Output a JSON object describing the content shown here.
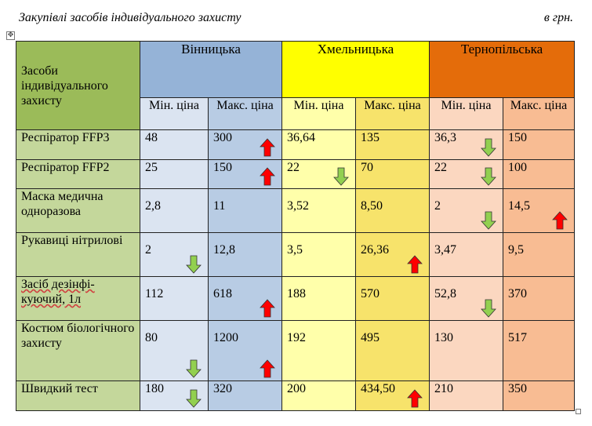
{
  "header": {
    "title": "Закупівлі  засобів індивідуального захисту",
    "unit": "в грн."
  },
  "table": {
    "corner_label": "Засоби індивідуального захисту",
    "cities": [
      "Вінницька",
      "Хмельницька",
      "Тернопільська"
    ],
    "min_label": "Мін. ціна",
    "max_label": "Макс. ціна",
    "rows": [
      {
        "item": "Респіратор FFP3",
        "values": [
          "48",
          "300",
          "36,64",
          "135",
          "36,3",
          "150"
        ]
      },
      {
        "item": "Респіратор FFP2",
        "values": [
          "25",
          "150",
          "22",
          "70",
          "22",
          "100"
        ]
      },
      {
        "item": "Маска медична одноразова",
        "values": [
          "2,8",
          "11",
          "3,52",
          "8,50",
          "2",
          "14,5"
        ]
      },
      {
        "item": "Рукавиці нітрилові",
        "values": [
          "2",
          "12,8",
          "3,5",
          "26,36",
          "3,47",
          "9,5"
        ]
      },
      {
        "item": "Засіб дезінфі-куючий, 1л",
        "values": [
          "112",
          "618",
          "188",
          "570",
          "52,8",
          "370"
        ]
      },
      {
        "item": "Костюм біологічного захисту",
        "values": [
          "80",
          "1200",
          "192",
          "495",
          "130",
          "517"
        ]
      },
      {
        "item": "Швидкий тест",
        "values": [
          "180",
          "320",
          "200",
          "434,50",
          "210",
          "350"
        ]
      }
    ]
  },
  "arrows": [
    {
      "row": 0,
      "col": 1,
      "dir": "up"
    },
    {
      "row": 0,
      "col": 4,
      "dir": "down"
    },
    {
      "row": 1,
      "col": 1,
      "dir": "up"
    },
    {
      "row": 1,
      "col": 2,
      "dir": "down"
    },
    {
      "row": 1,
      "col": 4,
      "dir": "down"
    },
    {
      "row": 2,
      "col": 4,
      "dir": "down"
    },
    {
      "row": 2,
      "col": 5,
      "dir": "up"
    },
    {
      "row": 3,
      "col": 0,
      "dir": "down"
    },
    {
      "row": 3,
      "col": 3,
      "dir": "up"
    },
    {
      "row": 4,
      "col": 1,
      "dir": "up"
    },
    {
      "row": 4,
      "col": 4,
      "dir": "down"
    },
    {
      "row": 5,
      "col": 0,
      "dir": "down"
    },
    {
      "row": 5,
      "col": 1,
      "dir": "up"
    },
    {
      "row": 6,
      "col": 0,
      "dir": "down"
    },
    {
      "row": 6,
      "col": 3,
      "dir": "up"
    }
  ],
  "colors": {
    "label_column": "#c4d79b",
    "header_label": "#9bbb59",
    "vinnytsia": "#95b3d7",
    "khmelnytska": "#ffff00",
    "ternopilska": "#e46c0a",
    "arrow_up": "#ff0000",
    "arrow_down": "#92d050"
  },
  "icons": {
    "up": "red-up-arrow-icon",
    "down": "green-down-arrow-icon",
    "move": "table-move-handle-icon",
    "resize": "table-resize-handle-icon"
  }
}
